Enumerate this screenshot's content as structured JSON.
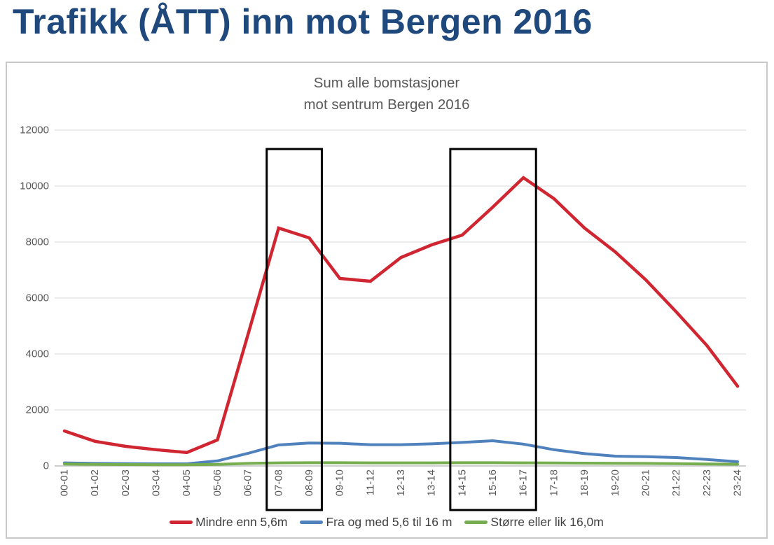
{
  "page": {
    "title": "Trafikk (ÅTT) inn mot Bergen 2016"
  },
  "colors": {
    "title": "#1F497D",
    "axis_text": "#595959",
    "legend_text": "#404040",
    "gridline": "#D9D9D9",
    "axis_line": "#BFBFBF",
    "highlight_box": "#000000"
  },
  "chart_data": {
    "type": "line",
    "title": "Sum alle bomstasjoner mot sentrum Bergen 2016",
    "title_lines": [
      "Sum alle bomstasjoner",
      "mot sentrum Bergen 2016"
    ],
    "categories": [
      "00-01",
      "01-02",
      "02-03",
      "03-04",
      "04-05",
      "05-06",
      "06-07",
      "07-08",
      "08-09",
      "09-10",
      "11-12",
      "12-13",
      "13-14",
      "14-15",
      "15-16",
      "16-17",
      "17-18",
      "18-19",
      "19-20",
      "20-21",
      "21-22",
      "22-23",
      "23-24"
    ],
    "series": [
      {
        "name": "Mindre enn 5,6m",
        "color": "#D02631",
        "values": [
          1250,
          880,
          700,
          580,
          480,
          930,
          4700,
          8500,
          8150,
          6700,
          6600,
          7450,
          7900,
          8250,
          9250,
          10300,
          9550,
          8500,
          7650,
          6650,
          5500,
          4300,
          2850
        ]
      },
      {
        "name": "Fra og med 5,6 til 16 m",
        "color": "#4F81BD",
        "values": [
          110,
          90,
          80,
          75,
          75,
          180,
          450,
          750,
          820,
          810,
          760,
          760,
          790,
          840,
          900,
          780,
          580,
          440,
          350,
          330,
          300,
          230,
          150
        ]
      },
      {
        "name": "Større eller lik 16,0m",
        "color": "#76AD4F",
        "values": [
          70,
          55,
          50,
          45,
          45,
          55,
          90,
          110,
          115,
          115,
          110,
          110,
          110,
          115,
          115,
          110,
          105,
          100,
          95,
          90,
          80,
          70,
          60
        ]
      }
    ],
    "ylim": [
      0,
      12000
    ],
    "yticks": [
      0,
      2000,
      4000,
      6000,
      8000,
      10000,
      12000
    ],
    "xlabel": "",
    "ylabel": "",
    "grid": true,
    "legend_position": "bottom",
    "highlight_boxes": [
      {
        "from_category": "07-08",
        "to_category": "08-09"
      },
      {
        "from_category": "14-15",
        "to_category": "16-17"
      }
    ]
  }
}
